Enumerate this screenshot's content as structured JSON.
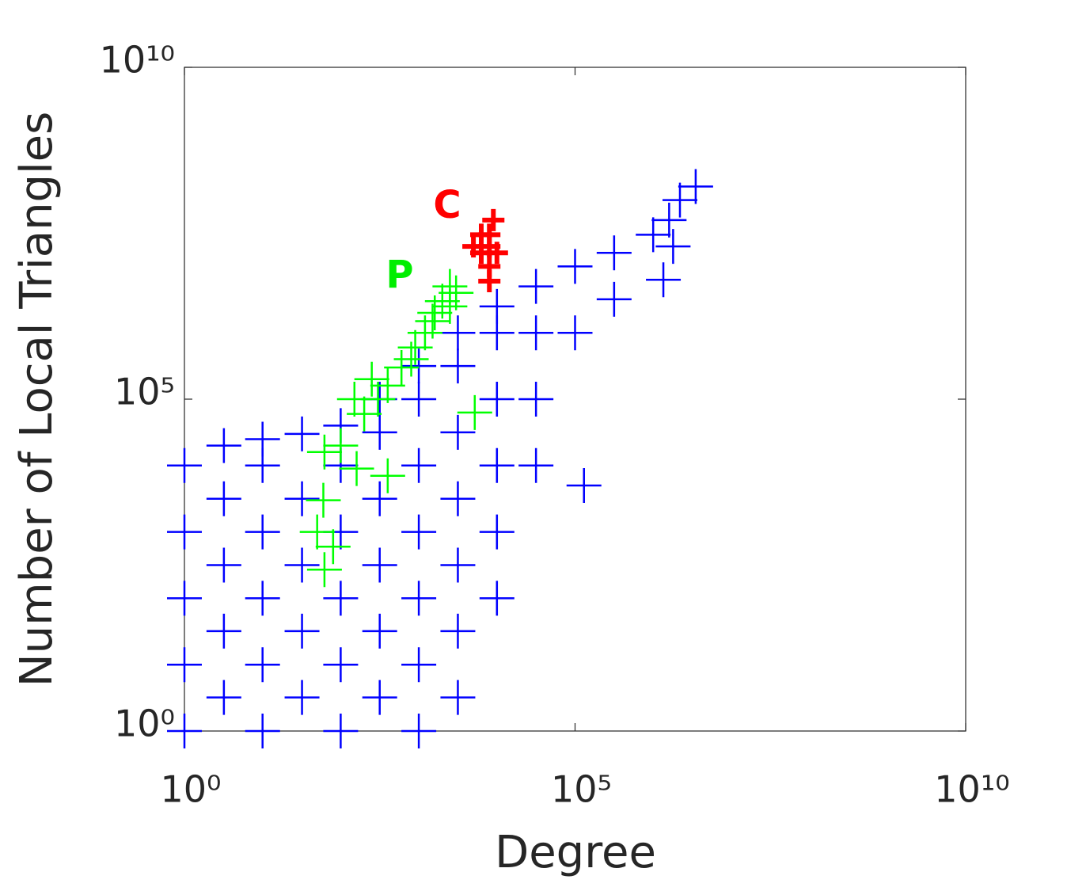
{
  "chart_data": {
    "type": "scatter",
    "xlabel": "Degree",
    "ylabel": "Number of Local Triangles",
    "xscale": "log",
    "yscale": "log",
    "xlim": [
      1,
      10000000000
    ],
    "ylim": [
      1,
      10000000000
    ],
    "xticks": [
      {
        "value": 1,
        "label": "10⁰"
      },
      {
        "value": 100000,
        "label": "10⁵"
      },
      {
        "value": 10000000000,
        "label": "10¹⁰"
      }
    ],
    "yticks": [
      {
        "value": 1,
        "label": "10⁰"
      },
      {
        "value": 100000,
        "label": "10⁵"
      },
      {
        "value": 10000000000,
        "label": "10¹⁰"
      }
    ],
    "marker": "+",
    "series": [
      {
        "color": "#0000ff",
        "x": [
          1,
          1,
          1,
          1,
          1,
          3.2,
          3.2,
          3.2,
          3.2,
          3.2,
          10,
          10,
          10,
          10,
          10,
          10,
          32,
          32,
          32,
          32,
          32,
          100,
          100,
          100,
          100,
          100,
          100,
          316,
          316,
          316,
          316,
          316,
          316,
          1000,
          1000,
          1000,
          1000,
          1000,
          1000,
          1000,
          3162,
          3162,
          3162,
          3162,
          3162,
          3162,
          3162,
          10000,
          10000,
          10000,
          10000,
          10000,
          10000,
          31623,
          31623,
          31623,
          31623,
          100000,
          100000,
          316228,
          316228,
          130000,
          1800000,
          1350000,
          3500000,
          2200000,
          1000000,
          1600000
        ],
        "y": [
          1,
          10,
          100,
          1000,
          10000,
          3.2,
          32,
          316,
          3162,
          20000,
          1,
          10,
          100,
          1000,
          10000,
          25000,
          3.2,
          32,
          316,
          3162,
          30000,
          1,
          10,
          100,
          1000,
          10000,
          40000,
          3.2,
          32,
          316,
          3162,
          31623,
          100000,
          1,
          10,
          100,
          1000,
          10000,
          100000,
          316000,
          3.2,
          32,
          316,
          3162,
          31623,
          316228,
          1000000,
          100,
          1000,
          10000,
          100000,
          1000000,
          2500000,
          10000,
          100000,
          1000000,
          5000000,
          1000000,
          10000000,
          3200000,
          16000000,
          5000,
          20000000,
          6300000,
          160000000,
          100000000,
          30000000,
          50000000
        ]
      },
      {
        "color": "#00ff00",
        "x": [
          2500,
          2000,
          1600,
          1200,
          900,
          600,
          400,
          300,
          200,
          150,
          250,
          800,
          1500,
          2500,
          3000,
          100,
          5200,
          62,
          80,
          62,
          400,
          160,
          60,
          50
        ],
        "y": [
          5000000,
          3000000,
          2000000,
          1000000,
          600000,
          300000,
          160000,
          100000,
          60000,
          100000,
          200000,
          400000,
          1500000,
          2500000,
          4000000,
          20000,
          63000,
          16000,
          600,
          270,
          7000,
          9000,
          3000,
          1000
        ]
      },
      {
        "color": "#ff0000",
        "x": [
          5000,
          6300,
          8000,
          10000,
          6300,
          8000,
          8000,
          9000,
          8000
        ],
        "y": [
          20000000,
          16000000,
          20000000,
          16000000,
          30000000,
          30000000,
          10000000,
          50000000,
          6000000
        ]
      }
    ],
    "annotations": [
      {
        "text": "C",
        "color": "#ff0000"
      },
      {
        "text": "P",
        "color": "#00ee00"
      }
    ]
  }
}
